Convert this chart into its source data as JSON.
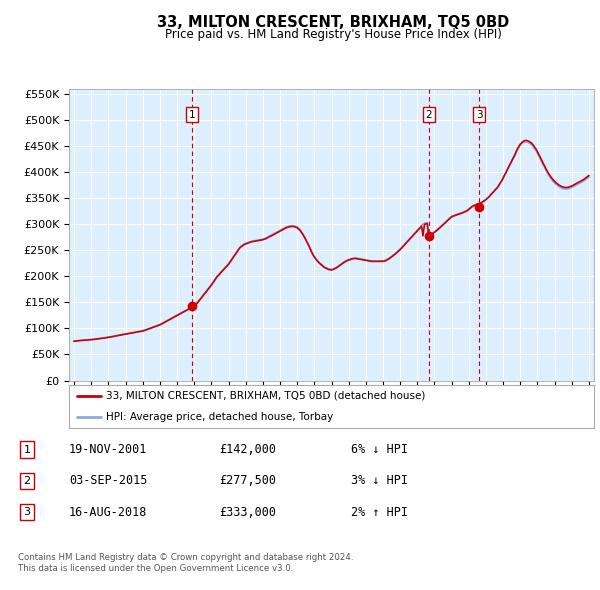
{
  "title": "33, MILTON CRESCENT, BRIXHAM, TQ5 0BD",
  "subtitle": "Price paid vs. HM Land Registry's House Price Index (HPI)",
  "legend_property": "33, MILTON CRESCENT, BRIXHAM, TQ5 0BD (detached house)",
  "legend_hpi": "HPI: Average price, detached house, Torbay",
  "transactions": [
    {
      "num": 1,
      "date": "19-NOV-2001",
      "price": 142000,
      "pct": "6%",
      "dir": "↓",
      "year": 2001.89
    },
    {
      "num": 2,
      "date": "03-SEP-2015",
      "price": 277500,
      "pct": "3%",
      "dir": "↓",
      "year": 2015.67
    },
    {
      "num": 3,
      "date": "16-AUG-2018",
      "price": 333000,
      "pct": "2%",
      "dir": "↑",
      "year": 2018.62
    }
  ],
  "footnote1": "Contains HM Land Registry data © Crown copyright and database right 2024.",
  "footnote2": "This data is licensed under the Open Government Licence v3.0.",
  "ylim": [
    0,
    560000
  ],
  "yticks": [
    0,
    50000,
    100000,
    150000,
    200000,
    250000,
    300000,
    350000,
    400000,
    450000,
    500000,
    550000
  ],
  "xlim_start": 1994.7,
  "xlim_end": 2025.3,
  "background_color": "#ffffff",
  "plot_bg": "#ddeeff",
  "grid_color": "#ffffff",
  "line_color_red": "#cc0000",
  "line_color_blue": "#88aadd",
  "vline_color": "#cc0000",
  "box_color": "#cc0000",
  "years_monthly": [
    1995.0,
    1995.08,
    1995.17,
    1995.25,
    1995.33,
    1995.42,
    1995.5,
    1995.58,
    1995.67,
    1995.75,
    1995.83,
    1995.92,
    1996.0,
    1996.08,
    1996.17,
    1996.25,
    1996.33,
    1996.42,
    1996.5,
    1996.58,
    1996.67,
    1996.75,
    1996.83,
    1996.92,
    1997.0,
    1997.08,
    1997.17,
    1997.25,
    1997.33,
    1997.42,
    1997.5,
    1997.58,
    1997.67,
    1997.75,
    1997.83,
    1997.92,
    1998.0,
    1998.08,
    1998.17,
    1998.25,
    1998.33,
    1998.42,
    1998.5,
    1998.58,
    1998.67,
    1998.75,
    1998.83,
    1998.92,
    1999.0,
    1999.08,
    1999.17,
    1999.25,
    1999.33,
    1999.42,
    1999.5,
    1999.58,
    1999.67,
    1999.75,
    1999.83,
    1999.92,
    2000.0,
    2000.08,
    2000.17,
    2000.25,
    2000.33,
    2000.42,
    2000.5,
    2000.58,
    2000.67,
    2000.75,
    2000.83,
    2000.92,
    2001.0,
    2001.08,
    2001.17,
    2001.25,
    2001.33,
    2001.42,
    2001.5,
    2001.58,
    2001.67,
    2001.75,
    2001.83,
    2001.92,
    2002.0,
    2002.08,
    2002.17,
    2002.25,
    2002.33,
    2002.42,
    2002.5,
    2002.58,
    2002.67,
    2002.75,
    2002.83,
    2002.92,
    2003.0,
    2003.08,
    2003.17,
    2003.25,
    2003.33,
    2003.42,
    2003.5,
    2003.58,
    2003.67,
    2003.75,
    2003.83,
    2003.92,
    2004.0,
    2004.08,
    2004.17,
    2004.25,
    2004.33,
    2004.42,
    2004.5,
    2004.58,
    2004.67,
    2004.75,
    2004.83,
    2004.92,
    2005.0,
    2005.08,
    2005.17,
    2005.25,
    2005.33,
    2005.42,
    2005.5,
    2005.58,
    2005.67,
    2005.75,
    2005.83,
    2005.92,
    2006.0,
    2006.08,
    2006.17,
    2006.25,
    2006.33,
    2006.42,
    2006.5,
    2006.58,
    2006.67,
    2006.75,
    2006.83,
    2006.92,
    2007.0,
    2007.08,
    2007.17,
    2007.25,
    2007.33,
    2007.42,
    2007.5,
    2007.58,
    2007.67,
    2007.75,
    2007.83,
    2007.92,
    2008.0,
    2008.08,
    2008.17,
    2008.25,
    2008.33,
    2008.42,
    2008.5,
    2008.58,
    2008.67,
    2008.75,
    2008.83,
    2008.92,
    2009.0,
    2009.08,
    2009.17,
    2009.25,
    2009.33,
    2009.42,
    2009.5,
    2009.58,
    2009.67,
    2009.75,
    2009.83,
    2009.92,
    2010.0,
    2010.08,
    2010.17,
    2010.25,
    2010.33,
    2010.42,
    2010.5,
    2010.58,
    2010.67,
    2010.75,
    2010.83,
    2010.92,
    2011.0,
    2011.08,
    2011.17,
    2011.25,
    2011.33,
    2011.42,
    2011.5,
    2011.58,
    2011.67,
    2011.75,
    2011.83,
    2011.92,
    2012.0,
    2012.08,
    2012.17,
    2012.25,
    2012.33,
    2012.42,
    2012.5,
    2012.58,
    2012.67,
    2012.75,
    2012.83,
    2012.92,
    2013.0,
    2013.08,
    2013.17,
    2013.25,
    2013.33,
    2013.42,
    2013.5,
    2013.58,
    2013.67,
    2013.75,
    2013.83,
    2013.92,
    2014.0,
    2014.08,
    2014.17,
    2014.25,
    2014.33,
    2014.42,
    2014.5,
    2014.58,
    2014.67,
    2014.75,
    2014.83,
    2014.92,
    2015.0,
    2015.08,
    2015.17,
    2015.25,
    2015.33,
    2015.42,
    2015.5,
    2015.58,
    2015.67,
    2015.75,
    2015.83,
    2015.92,
    2016.0,
    2016.08,
    2016.17,
    2016.25,
    2016.33,
    2016.42,
    2016.5,
    2016.58,
    2016.67,
    2016.75,
    2016.83,
    2016.92,
    2017.0,
    2017.08,
    2017.17,
    2017.25,
    2017.33,
    2017.42,
    2017.5,
    2017.58,
    2017.67,
    2017.75,
    2017.83,
    2017.92,
    2018.0,
    2018.08,
    2018.17,
    2018.25,
    2018.33,
    2018.42,
    2018.5,
    2018.58,
    2018.67,
    2018.75,
    2018.83,
    2018.92,
    2019.0,
    2019.08,
    2019.17,
    2019.25,
    2019.33,
    2019.42,
    2019.5,
    2019.58,
    2019.67,
    2019.75,
    2019.83,
    2019.92,
    2020.0,
    2020.08,
    2020.17,
    2020.25,
    2020.33,
    2020.42,
    2020.5,
    2020.58,
    2020.67,
    2020.75,
    2020.83,
    2020.92,
    2021.0,
    2021.08,
    2021.17,
    2021.25,
    2021.33,
    2021.42,
    2021.5,
    2021.58,
    2021.67,
    2021.75,
    2021.83,
    2021.92,
    2022.0,
    2022.08,
    2022.17,
    2022.25,
    2022.33,
    2022.42,
    2022.5,
    2022.58,
    2022.67,
    2022.75,
    2022.83,
    2022.92,
    2023.0,
    2023.08,
    2023.17,
    2023.25,
    2023.33,
    2023.42,
    2023.5,
    2023.58,
    2023.67,
    2023.75,
    2023.83,
    2023.92,
    2024.0,
    2024.08,
    2024.17,
    2024.25,
    2024.33,
    2024.42,
    2024.5,
    2024.58,
    2024.67,
    2024.75,
    2024.83,
    2024.92,
    2025.0
  ],
  "hpi_values_monthly": [
    75000,
    75500,
    76000,
    76500,
    77000,
    77200,
    77400,
    77600,
    77800,
    78000,
    78200,
    78400,
    78600,
    78800,
    79200,
    79600,
    80000,
    80400,
    80800,
    81200,
    81600,
    82000,
    82400,
    82800,
    83200,
    83600,
    84200,
    84800,
    85400,
    86000,
    86500,
    87000,
    87500,
    88000,
    88500,
    89000,
    89500,
    90000,
    90500,
    91000,
    91500,
    92000,
    92500,
    93000,
    93500,
    94000,
    94500,
    95000,
    95500,
    96500,
    97500,
    98500,
    99500,
    100500,
    101500,
    102500,
    103500,
    104500,
    105500,
    106500,
    107500,
    109000,
    110500,
    112000,
    113500,
    115000,
    116500,
    118000,
    119500,
    121000,
    122500,
    124000,
    125500,
    127000,
    128500,
    130000,
    131500,
    133000,
    134500,
    136000,
    137500,
    139000,
    140500,
    142000,
    144000,
    147000,
    150000,
    153000,
    156000,
    159500,
    163000,
    166500,
    170000,
    173500,
    177000,
    180500,
    184000,
    188000,
    192000,
    196000,
    200000,
    203000,
    206000,
    209000,
    212000,
    215000,
    218000,
    221000,
    224000,
    228000,
    232000,
    236000,
    240000,
    244000,
    248000,
    252000,
    256000,
    258000,
    260000,
    262000,
    263000,
    264000,
    265000,
    266000,
    267000,
    267500,
    268000,
    268500,
    269000,
    269500,
    270000,
    270500,
    271000,
    272000,
    273000,
    274500,
    276000,
    277500,
    279000,
    280500,
    282000,
    283500,
    285000,
    286500,
    288000,
    289500,
    291000,
    292500,
    294000,
    295000,
    296000,
    296500,
    297000,
    297000,
    296500,
    295500,
    294500,
    292000,
    289000,
    285000,
    281000,
    276000,
    271000,
    265500,
    260000,
    254000,
    248000,
    242000,
    238000,
    234000,
    230500,
    227500,
    225000,
    222500,
    220000,
    218000,
    216500,
    215000,
    214000,
    213500,
    213000,
    214000,
    215000,
    216500,
    218000,
    220000,
    222000,
    224000,
    226000,
    228000,
    229500,
    231000,
    232000,
    233000,
    234000,
    234500,
    235000,
    235000,
    234500,
    234000,
    233500,
    233000,
    232500,
    232000,
    231500,
    231000,
    230500,
    230000,
    229500,
    229500,
    229500,
    229500,
    229500,
    229500,
    229500,
    229500,
    229500,
    230000,
    231000,
    232500,
    234000,
    236000,
    238000,
    240000,
    242000,
    244500,
    247000,
    249500,
    252000,
    255000,
    258000,
    261000,
    264000,
    267000,
    270000,
    273000,
    276000,
    279000,
    282000,
    285000,
    288000,
    291000,
    294000,
    297000,
    300000,
    301500,
    302500,
    303000,
    278000,
    279500,
    281000,
    283000,
    285000,
    287000,
    289500,
    292000,
    294500,
    297000,
    299500,
    302000,
    305000,
    307500,
    310000,
    312500,
    315000,
    316000,
    317000,
    318000,
    319000,
    320000,
    321000,
    322000,
    323000,
    324000,
    325500,
    327000,
    329000,
    331000,
    333000,
    334500,
    336000,
    337000,
    338000,
    339000,
    340000,
    341500,
    343000,
    345000,
    347000,
    349500,
    352000,
    355000,
    358000,
    361000,
    364000,
    367000,
    370000,
    374000,
    378500,
    383000,
    388000,
    393000,
    398500,
    404000,
    409500,
    415000,
    420000,
    425000,
    430000,
    436000,
    442000,
    447000,
    451000,
    454000,
    456000,
    457000,
    457500,
    457000,
    456000,
    454000,
    452000,
    449000,
    445000,
    441000,
    436000,
    430500,
    425000,
    419500,
    414000,
    408500,
    403000,
    398000,
    393000,
    389000,
    385500,
    382000,
    379000,
    376500,
    374000,
    372000,
    370500,
    369000,
    368000,
    367500,
    367000,
    367500,
    368000,
    369000,
    370000,
    371500,
    373000,
    374500,
    376000,
    377500,
    379000,
    380500,
    382000,
    384000,
    386000,
    388000,
    390000,
    391500,
    393000,
    394500,
    396000,
    397000,
    398000,
    399000,
    400000,
    401000,
    402000,
    403000,
    404000,
    405000,
    406000,
    407000,
    408000,
    409000,
    410000,
    411000,
    412000
  ],
  "prop_values_monthly": [
    75500,
    75800,
    76100,
    76400,
    76700,
    76900,
    77100,
    77300,
    77500,
    77700,
    77900,
    78100,
    78300,
    78500,
    78900,
    79300,
    79700,
    80000,
    80400,
    80800,
    81200,
    81600,
    82000,
    82400,
    82800,
    83200,
    83800,
    84400,
    85000,
    85500,
    86000,
    86500,
    87000,
    87500,
    88000,
    88500,
    89000,
    89500,
    90000,
    90500,
    91000,
    91500,
    92000,
    92500,
    93000,
    93500,
    94000,
    94400,
    94900,
    95800,
    96800,
    97800,
    98800,
    99800,
    100800,
    101800,
    102800,
    103800,
    104800,
    105800,
    106800,
    108200,
    109700,
    111200,
    112700,
    114200,
    115700,
    117200,
    118700,
    120200,
    121700,
    123200,
    124700,
    126200,
    127700,
    129200,
    130700,
    132200,
    133700,
    135200,
    136700,
    138200,
    139700,
    141200,
    142000,
    145000,
    148000,
    151500,
    155000,
    158500,
    162000,
    165500,
    169000,
    172500,
    176000,
    179500,
    183000,
    187000,
    191000,
    195000,
    199000,
    202000,
    205000,
    208000,
    211000,
    214000,
    217000,
    220000,
    223000,
    227000,
    231000,
    235000,
    239000,
    243000,
    247000,
    251000,
    255000,
    257000,
    259000,
    261000,
    262000,
    263000,
    264000,
    265000,
    266000,
    266500,
    267000,
    267500,
    268000,
    268500,
    269000,
    269500,
    270000,
    271000,
    272000,
    273500,
    275000,
    276500,
    277500,
    279000,
    280500,
    282000,
    283500,
    285000,
    286500,
    288000,
    289500,
    291000,
    292500,
    293500,
    294500,
    295000,
    295500,
    295500,
    295000,
    294000,
    293000,
    290500,
    288000,
    284000,
    280000,
    275000,
    270000,
    264500,
    259000,
    253000,
    247000,
    241000,
    237000,
    233000,
    229500,
    226500,
    224000,
    221500,
    219000,
    217000,
    215500,
    214000,
    213000,
    212500,
    212000,
    213000,
    214000,
    215500,
    217000,
    219000,
    221000,
    223000,
    225000,
    227000,
    228500,
    230000,
    231000,
    232000,
    233000,
    233500,
    234000,
    234000,
    233500,
    233000,
    232500,
    232000,
    231500,
    231000,
    230500,
    230000,
    229500,
    229000,
    228500,
    228500,
    228500,
    228500,
    228500,
    228500,
    228500,
    228500,
    228500,
    229000,
    230000,
    231500,
    233000,
    235000,
    237000,
    239000,
    241000,
    243500,
    246000,
    248500,
    251000,
    254000,
    257000,
    260000,
    263000,
    266000,
    269000,
    272000,
    275000,
    278000,
    281000,
    284000,
    287000,
    290000,
    293000,
    296000,
    277500,
    299000,
    300500,
    301000,
    276000,
    278000,
    280000,
    282000,
    284000,
    286000,
    288500,
    291000,
    293500,
    296000,
    298500,
    301000,
    304000,
    306500,
    309000,
    311500,
    314000,
    315000,
    316000,
    317000,
    318000,
    319000,
    320000,
    321000,
    322000,
    323000,
    324500,
    326000,
    328000,
    330000,
    333000,
    334500,
    336000,
    337000,
    338000,
    339000,
    340000,
    341500,
    343000,
    345000,
    347000,
    349500,
    352000,
    355000,
    358000,
    361000,
    364000,
    367000,
    370000,
    374000,
    378500,
    383000,
    388000,
    393500,
    399000,
    404500,
    410000,
    415500,
    421000,
    426500,
    432000,
    438000,
    444000,
    449000,
    453000,
    456000,
    458500,
    460000,
    460500,
    460000,
    459000,
    457000,
    455000,
    452000,
    448000,
    444000,
    439000,
    433500,
    428000,
    422500,
    417000,
    411500,
    406000,
    401000,
    396000,
    392000,
    388500,
    385000,
    382000,
    379500,
    377000,
    375000,
    373500,
    372000,
    371000,
    370500,
    370000,
    370500,
    371000,
    372000,
    373000,
    374500,
    376000,
    377500,
    379000,
    380500,
    382000,
    383500,
    385000,
    387000,
    389000,
    391000,
    393000,
    394500,
    396000,
    397500,
    399000,
    400000,
    401000,
    402000,
    403000,
    404000,
    405000,
    406000,
    407000,
    408000,
    409000,
    410000,
    411000,
    412000,
    413000,
    414000,
    415000
  ]
}
